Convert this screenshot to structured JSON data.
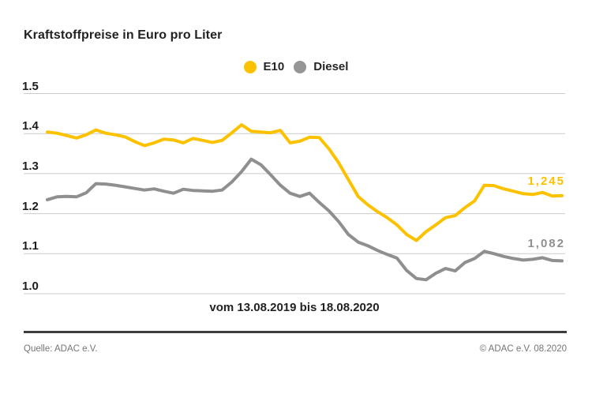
{
  "title": "Kraftstoffpreise in Euro pro Liter",
  "legend": [
    {
      "label": "E10",
      "color": "#fcc200"
    },
    {
      "label": "Diesel",
      "color": "#969696"
    }
  ],
  "colors": {
    "e10_line": "#fcc200",
    "diesel_line": "#8f8f8f",
    "gridline": "#cbcbcb",
    "title_text": "#222222",
    "footer_text": "#757575",
    "bottom_rule": "#3d3d3d"
  },
  "footer": {
    "source_left": "Quelle: ADAC e.V.",
    "source_right": "© ADAC e.V. 08.2020"
  },
  "chart_data": {
    "type": "line",
    "title": "Kraftstoffpreise in Euro pro Liter",
    "xlabel": "vom 13.08.2019 bis 18.08.2020",
    "ylabel": "Euro pro Liter",
    "ylim": [
      1.0,
      1.5
    ],
    "grid": true,
    "legend_position": "top-center",
    "x_description": "weekly prices from 13.08.2019 to 18.08.2020",
    "yticks": [
      {
        "label": "1.5",
        "value": 1.5
      },
      {
        "label": "1.4",
        "value": 1.4
      },
      {
        "label": "1.3",
        "value": 1.3
      },
      {
        "label": "1.2",
        "value": 1.2
      },
      {
        "label": "1.1",
        "value": 1.1
      },
      {
        "label": "1.0",
        "value": 1.0
      }
    ],
    "end_labels": [
      {
        "series": "E10",
        "text": "1,245"
      },
      {
        "series": "Diesel",
        "text": "1,082"
      }
    ],
    "series": [
      {
        "name": "E10",
        "color": "#fcc200",
        "values": [
          1.404,
          1.401,
          1.395,
          1.389,
          1.397,
          1.409,
          1.401,
          1.397,
          1.392,
          1.38,
          1.37,
          1.377,
          1.386,
          1.384,
          1.377,
          1.388,
          1.383,
          1.378,
          1.383,
          1.402,
          1.422,
          1.406,
          1.404,
          1.402,
          1.408,
          1.377,
          1.381,
          1.391,
          1.39,
          1.362,
          1.327,
          1.285,
          1.243,
          1.222,
          1.205,
          1.19,
          1.172,
          1.148,
          1.133,
          1.155,
          1.172,
          1.19,
          1.195,
          1.215,
          1.232,
          1.271,
          1.27,
          1.262,
          1.256,
          1.25,
          1.248,
          1.253,
          1.244,
          1.245
        ]
      },
      {
        "name": "Diesel",
        "color": "#8f8f8f",
        "values": [
          1.235,
          1.242,
          1.243,
          1.242,
          1.252,
          1.275,
          1.274,
          1.271,
          1.267,
          1.263,
          1.259,
          1.262,
          1.256,
          1.251,
          1.261,
          1.258,
          1.257,
          1.256,
          1.259,
          1.279,
          1.305,
          1.336,
          1.322,
          1.297,
          1.271,
          1.251,
          1.243,
          1.251,
          1.228,
          1.207,
          1.18,
          1.148,
          1.129,
          1.12,
          1.108,
          1.098,
          1.089,
          1.058,
          1.038,
          1.035,
          1.051,
          1.063,
          1.057,
          1.078,
          1.088,
          1.106,
          1.1,
          1.093,
          1.088,
          1.084,
          1.086,
          1.09,
          1.083,
          1.082
        ]
      }
    ]
  }
}
